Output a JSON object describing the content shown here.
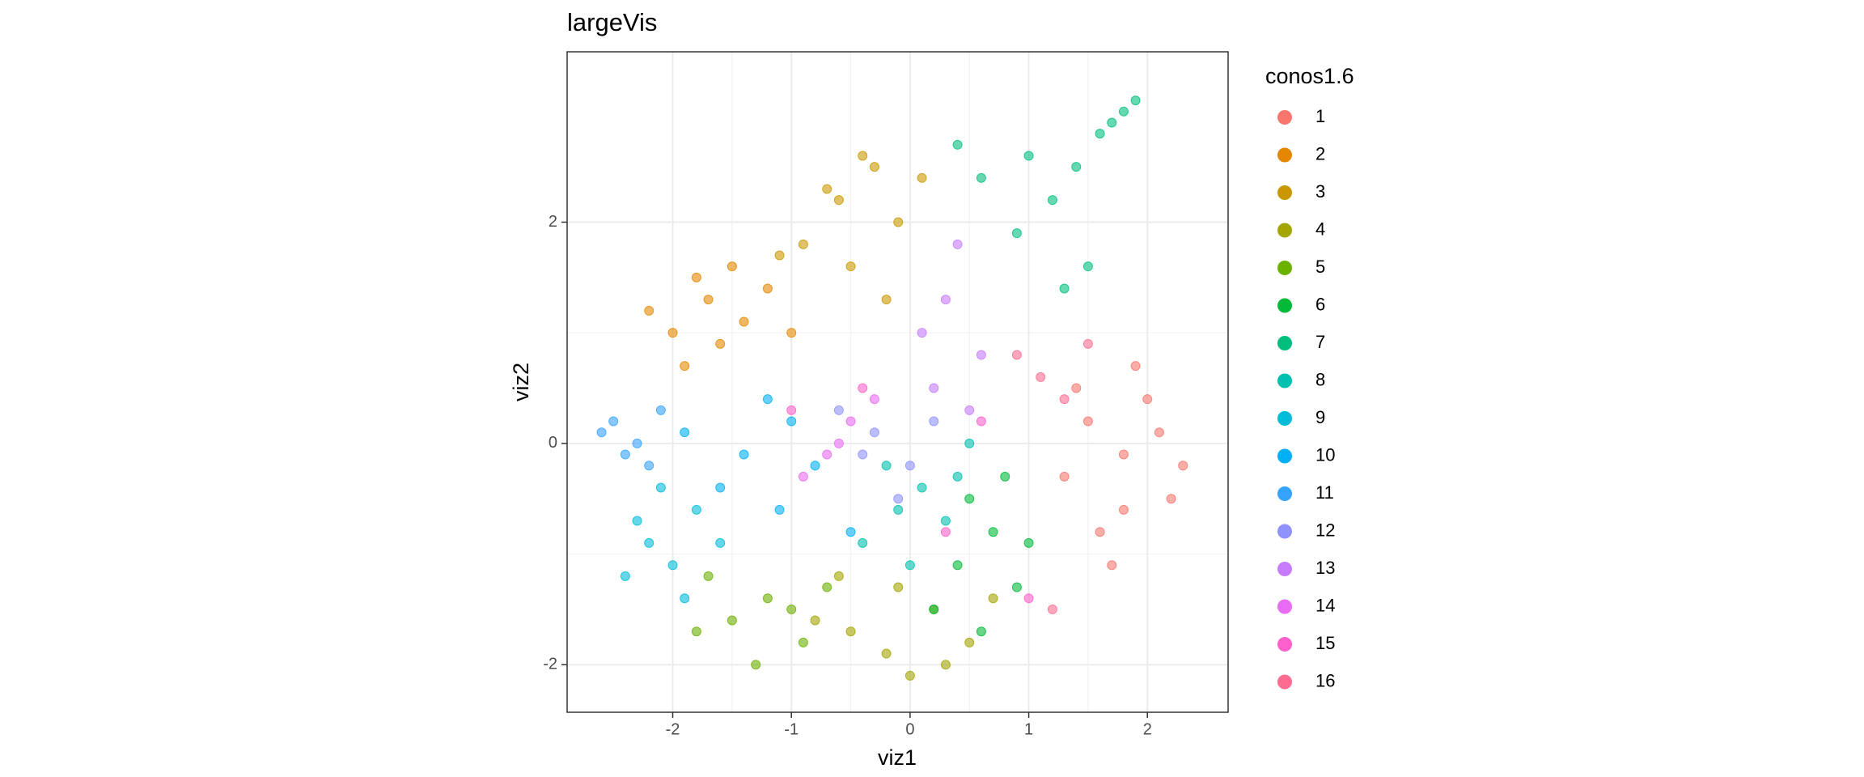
{
  "chart_data": {
    "type": "scatter",
    "title": "largeVis",
    "x_label": "viz1",
    "y_label": "viz2",
    "legend_title": "conos1.6",
    "legend_position": "right",
    "grid": true,
    "xlim": [
      -2.89,
      2.68
    ],
    "ylim": [
      -2.43,
      3.54
    ],
    "xticks": [
      -2,
      -1,
      0,
      1,
      2
    ],
    "yticks": [
      -2,
      0,
      2
    ],
    "series": [
      {
        "name": "1",
        "color": "#F8766D",
        "x": [
          1.5,
          1.8,
          2.0,
          2.2,
          1.6,
          1.9,
          1.3,
          2.1,
          1.7,
          1.4,
          2.3,
          1.8
        ],
        "y": [
          0.2,
          -0.1,
          0.4,
          -0.5,
          -0.8,
          0.7,
          -0.3,
          0.1,
          -1.1,
          0.5,
          -0.2,
          -0.6
        ]
      },
      {
        "name": "2",
        "color": "#E58700",
        "x": [
          -2.0,
          -1.7,
          -1.4,
          -1.9,
          -1.2,
          -1.6,
          -2.2,
          -1.0,
          -1.5,
          -1.8
        ],
        "y": [
          1.0,
          1.3,
          1.1,
          0.7,
          1.4,
          0.9,
          1.2,
          1.0,
          1.6,
          1.5
        ]
      },
      {
        "name": "3",
        "color": "#C99800",
        "x": [
          -0.6,
          -0.3,
          -0.9,
          -0.1,
          -0.5,
          -1.1,
          0.1,
          -0.7,
          -0.2,
          -0.4
        ],
        "y": [
          2.2,
          2.5,
          1.8,
          2.0,
          1.6,
          1.7,
          2.4,
          2.3,
          1.3,
          2.6
        ]
      },
      {
        "name": "4",
        "color": "#A3A500",
        "x": [
          -0.5,
          -0.2,
          0.2,
          -0.8,
          0.5,
          -0.1,
          0.3,
          -0.6,
          0.7,
          0.0
        ],
        "y": [
          -1.7,
          -1.9,
          -1.5,
          -1.6,
          -1.8,
          -1.3,
          -2.0,
          -1.2,
          -1.4,
          -2.1
        ]
      },
      {
        "name": "5",
        "color": "#6BB100",
        "x": [
          -1.5,
          -1.2,
          -0.9,
          -1.7,
          -1.0,
          -1.3,
          -0.7,
          -1.8
        ],
        "y": [
          -1.6,
          -1.4,
          -1.8,
          -1.2,
          -1.5,
          -2.0,
          -1.3,
          -1.7
        ]
      },
      {
        "name": "6",
        "color": "#00BA38",
        "x": [
          0.4,
          0.7,
          0.9,
          0.5,
          0.2,
          0.8,
          0.6,
          1.0
        ],
        "y": [
          -1.1,
          -0.8,
          -1.3,
          -0.5,
          -1.5,
          -0.3,
          -1.7,
          -0.9
        ]
      },
      {
        "name": "7",
        "color": "#00BF7D",
        "x": [
          1.6,
          1.8,
          1.9,
          1.4,
          1.2,
          0.9,
          1.0,
          0.6,
          1.5,
          1.7,
          0.4,
          1.3
        ],
        "y": [
          2.8,
          3.0,
          3.1,
          2.5,
          2.2,
          1.9,
          2.6,
          2.4,
          1.6,
          2.9,
          2.7,
          1.4
        ]
      },
      {
        "name": "8",
        "color": "#00C0AF",
        "x": [
          0.1,
          0.3,
          -0.2,
          0.5,
          -0.4,
          0.0,
          0.4,
          -0.1
        ],
        "y": [
          -0.4,
          -0.7,
          -0.2,
          0.0,
          -0.9,
          -1.1,
          -0.3,
          -0.6
        ]
      },
      {
        "name": "9",
        "color": "#00BCD8",
        "x": [
          -2.2,
          -2.0,
          -1.8,
          -2.4,
          -1.6,
          -2.1,
          -1.9,
          -2.3
        ],
        "y": [
          -0.9,
          -1.1,
          -0.6,
          -1.2,
          -0.9,
          -0.4,
          -1.4,
          -0.7
        ]
      },
      {
        "name": "10",
        "color": "#00B0F6",
        "x": [
          -1.4,
          -1.0,
          -1.6,
          -1.2,
          -0.8,
          -1.9,
          -0.5,
          -1.1
        ],
        "y": [
          -0.1,
          0.2,
          -0.4,
          0.4,
          -0.2,
          0.1,
          -0.8,
          -0.6
        ]
      },
      {
        "name": "11",
        "color": "#35A2FF",
        "x": [
          -2.5,
          -2.3,
          -2.1,
          -2.6,
          -2.2,
          -2.4
        ],
        "y": [
          0.2,
          0.0,
          0.3,
          0.1,
          -0.2,
          -0.1
        ]
      },
      {
        "name": "12",
        "color": "#8F91FF",
        "x": [
          -0.3,
          0.0,
          -0.6,
          0.2,
          -0.1,
          -0.4
        ],
        "y": [
          0.1,
          -0.2,
          0.3,
          0.2,
          -0.5,
          -0.1
        ]
      },
      {
        "name": "13",
        "color": "#C77CFF",
        "x": [
          0.2,
          0.4,
          0.6,
          0.3,
          0.5,
          0.1
        ],
        "y": [
          0.5,
          1.8,
          0.8,
          1.3,
          0.3,
          1.0
        ]
      },
      {
        "name": "14",
        "color": "#E76BF3",
        "x": [
          -0.7,
          -0.5,
          -0.9,
          -0.3,
          -0.6
        ],
        "y": [
          -0.1,
          0.2,
          -0.3,
          0.4,
          0.0
        ]
      },
      {
        "name": "15",
        "color": "#FF61CC",
        "x": [
          -0.4,
          0.3,
          1.0,
          -1.0,
          0.6
        ],
        "y": [
          0.5,
          -0.8,
          -1.4,
          0.3,
          0.2
        ]
      },
      {
        "name": "16",
        "color": "#FF6C91",
        "x": [
          1.1,
          1.3,
          0.9,
          1.2,
          1.5
        ],
        "y": [
          0.6,
          0.4,
          0.8,
          -1.5,
          0.9
        ]
      }
    ]
  }
}
